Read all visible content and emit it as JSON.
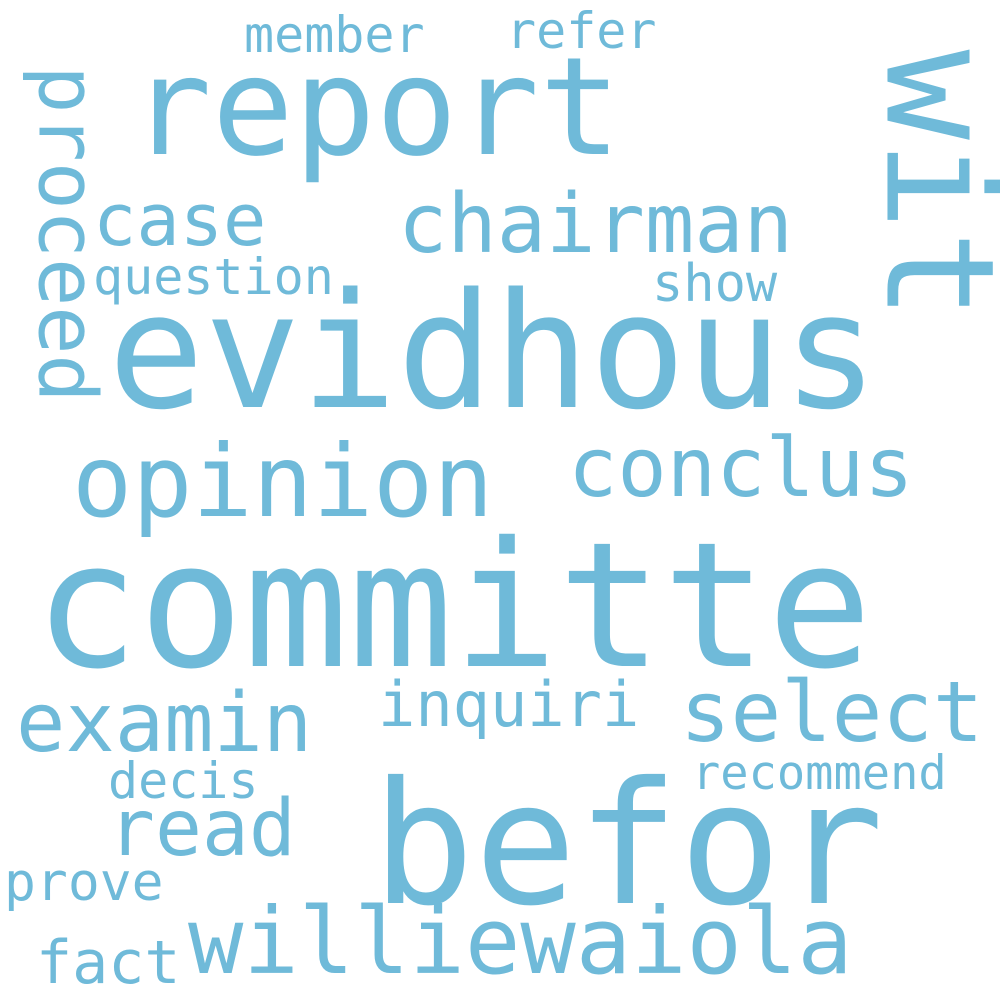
{
  "cloud": {
    "color": "#6fbad9",
    "background": "#ffffff",
    "words": {
      "committe": "committe",
      "evidhous": "evidhous",
      "befor": "befor",
      "report": "report",
      "opinion": "opinion",
      "williewaiola": "williewaiola",
      "wit": "wit",
      "conclus": "conclus",
      "examin": "examin",
      "select": "select",
      "chairman": "chairman",
      "proceed": "proceed",
      "case": "case",
      "read": "read",
      "inquiri": "inquiri",
      "question": "question",
      "recommend": "recommend",
      "member": "member",
      "refer": "refer",
      "show": "show",
      "decis": "decis",
      "prove": "prove",
      "fact": "fact"
    }
  }
}
